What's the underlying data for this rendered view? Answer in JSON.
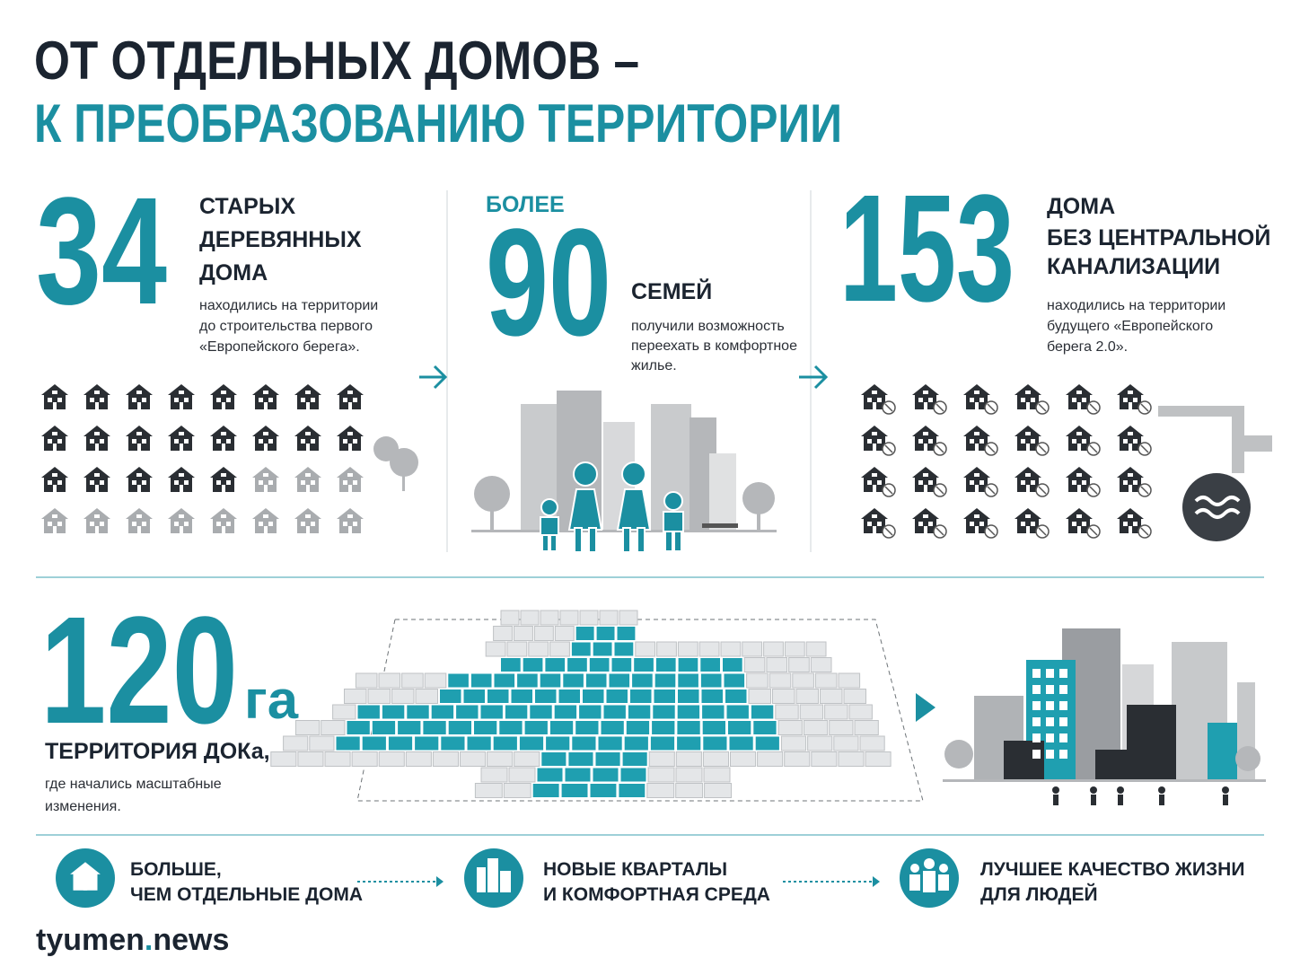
{
  "header": {
    "title_line1": "ОТ ОТДЕЛЬНЫХ ДОМОВ –",
    "title_line2": "К ПРЕОБРАЗОВАНИЮ ТЕРРИТОРИИ"
  },
  "stats": [
    {
      "number": "34",
      "heading": [
        "СТАРЫХ",
        "ДЕРЕВЯННЫХ",
        "ДОМА"
      ],
      "description": [
        "находились на территории",
        "до строительства первого",
        "«Европейского берега»."
      ]
    },
    {
      "prefix": "БОЛЕЕ",
      "number": "90",
      "heading": [
        "СЕМЕЙ"
      ],
      "description": [
        "получили возможность",
        "переехать в комфортное",
        "жилье."
      ]
    },
    {
      "number": "153",
      "heading": [
        "ДОМА",
        "БЕЗ ЦЕНТРАЛЬНОЙ",
        "КАНАЛИЗАЦИИ"
      ],
      "description": [
        "находились на территории",
        "будущего «Европейского",
        "берега 2.0»."
      ]
    }
  ],
  "territory": {
    "number": "120",
    "unit": "га",
    "heading": "ТЕРРИТОРИЯ ДОКа,",
    "description": [
      "где начались масштабные",
      "изменения."
    ]
  },
  "steps": [
    {
      "lines": [
        "БОЛЬШЕ,",
        "ЧЕМ ОТДЕЛЬНЫЕ ДОМА"
      ]
    },
    {
      "lines": [
        "НОВЫЕ КВАРТАЛЫ",
        "И КОМФОРТНАЯ СРЕДА"
      ]
    },
    {
      "lines": [
        "ЛУЧШЕЕ КАЧЕСТВО ЖИЗНИ",
        "ДЛЯ ЛЮДЕЙ"
      ]
    }
  ],
  "brand": {
    "name": "tyumen",
    "dot": ".",
    "suffix": "news"
  }
}
